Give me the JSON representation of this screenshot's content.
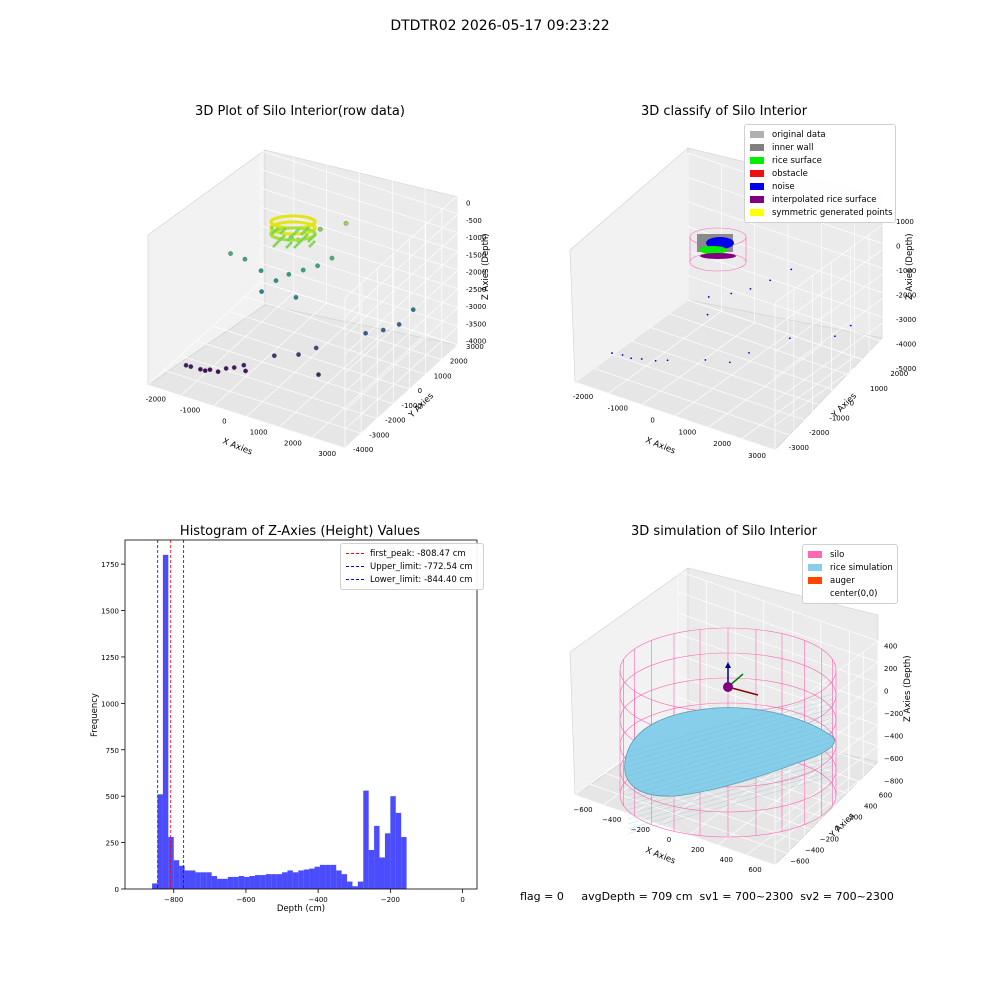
{
  "figure_title": "DTDTR02 2026-05-17 09:23:22",
  "footer_text": "flag = 0     avgDepth = 709 cm  sv1 = 700~2300  sv2 = 700~2300",
  "chart_data": [
    {
      "type": "scatter",
      "title": "3D Plot of Silo Interior(row data)",
      "xlabel": "X Axies",
      "ylabel": "Y Axies",
      "zlabel": "Z Axies (Depth)",
      "x_ticks": [
        "-2000",
        "-1000",
        "0",
        "1000",
        "2000",
        "3000"
      ],
      "y_ticks": [
        "-4000",
        "-3000",
        "-2000",
        "-1000",
        "0",
        "1000",
        "2000",
        "3000"
      ],
      "z_ticks": [
        "0",
        "-500",
        "-1000",
        "-1500",
        "-2000",
        "-2500",
        "-3000",
        "-3500",
        "-4000"
      ],
      "xlim": [
        -2500,
        3500
      ],
      "ylim": [
        -4000,
        3500
      ],
      "zlim": [
        -4300,
        200
      ],
      "colormap": "viridis (by depth)",
      "series": [
        {
          "values": [
            {
              "x": -1800,
              "y": -3000,
              "z": -3900
            },
            {
              "x": -1700,
              "y": -2900,
              "z": -3950
            },
            {
              "x": -1500,
              "y": -2700,
              "z": -4050
            },
            {
              "x": -1400,
              "y": -2600,
              "z": -4100
            },
            {
              "x": -1300,
              "y": -2500,
              "z": -4080
            },
            {
              "x": -1100,
              "y": -2400,
              "z": -4120
            },
            {
              "x": -900,
              "y": -2300,
              "z": -4000
            },
            {
              "x": -700,
              "y": -2200,
              "z": -3950
            },
            {
              "x": -500,
              "y": -2000,
              "z": -3900
            },
            {
              "x": -400,
              "y": -2100,
              "z": -4000
            },
            {
              "x": 200,
              "y": -1500,
              "z": -3600
            },
            {
              "x": 800,
              "y": -1200,
              "z": -3500
            },
            {
              "x": 1200,
              "y": -900,
              "z": -3300
            },
            {
              "x": 1500,
              "y": -1400,
              "z": -3800
            },
            {
              "x": 2600,
              "y": 500,
              "z": -2900
            },
            {
              "x": 2900,
              "y": 900,
              "z": -2800
            },
            {
              "x": 3100,
              "y": 1400,
              "z": -2500
            },
            {
              "x": 2200,
              "y": 200,
              "z": -3000
            },
            {
              "x": -1500,
              "y": -700,
              "z": -1400
            },
            {
              "x": -1200,
              "y": -400,
              "z": -1600
            },
            {
              "x": -800,
              "y": -200,
              "z": -1900
            },
            {
              "x": -600,
              "y": -600,
              "z": -2300
            },
            {
              "x": -300,
              "y": -300,
              "z": -2000
            },
            {
              "x": 0,
              "y": -100,
              "z": -1800
            },
            {
              "x": 300,
              "y": 200,
              "z": -1700
            },
            {
              "x": 600,
              "y": 500,
              "z": -1600
            },
            {
              "x": 900,
              "y": 800,
              "z": -1400
            },
            {
              "x": 400,
              "y": -500,
              "z": -2200
            },
            {
              "x": 100,
              "y": 300,
              "z": -900
            },
            {
              "x": -200,
              "y": 500,
              "z": -1000
            },
            {
              "x": 500,
              "y": 900,
              "z": -700
            },
            {
              "x": 1100,
              "y": 1300,
              "z": -500
            }
          ]
        }
      ]
    },
    {
      "type": "scatter",
      "title": "3D classify of Silo Interior",
      "xlabel": "X Axies",
      "ylabel": "Y Axies",
      "zlabel": "Z Axies (Depth)",
      "x_ticks": [
        "-2000",
        "-1000",
        "0",
        "1000",
        "2000",
        "3000"
      ],
      "y_ticks": [
        "-3000",
        "-2000",
        "-1000",
        "0",
        "1000",
        "2000"
      ],
      "z_ticks": [
        "1000",
        "0",
        "-1000",
        "-2000",
        "-3000",
        "-4000",
        "-5000"
      ],
      "xlim": [
        -2500,
        3500
      ],
      "ylim": [
        -3300,
        2500
      ],
      "zlim": [
        -5000,
        1000
      ],
      "legend": [
        {
          "name": "original data",
          "color": "#b0b0b0"
        },
        {
          "name": "inner wall",
          "color": "#808080"
        },
        {
          "name": "rice surface",
          "color": "#00ee00"
        },
        {
          "name": "obstacle",
          "color": "#ee1111"
        },
        {
          "name": "noise",
          "color": "#0000ee"
        },
        {
          "name": "interpolated rice surface",
          "color": "#800080"
        },
        {
          "name": "symmetric generated points",
          "color": "#ffff00"
        }
      ]
    },
    {
      "type": "bar",
      "title": "Histogram of Z-Axies (Height) Values",
      "xlabel": "Depth (cm)",
      "ylabel": "Frequency",
      "bin_width": 15,
      "bin_start": -860,
      "values": [
        30,
        510,
        1800,
        280,
        155,
        125,
        100,
        100,
        90,
        90,
        90,
        70,
        55,
        55,
        65,
        65,
        70,
        65,
        70,
        75,
        75,
        80,
        80,
        80,
        90,
        100,
        90,
        100,
        105,
        110,
        120,
        130,
        130,
        130,
        100,
        80,
        40,
        15,
        40,
        530,
        210,
        340,
        170,
        300,
        500,
        410,
        280
      ],
      "xlim": [
        -935,
        40
      ],
      "ylim": [
        0,
        1880
      ],
      "x_ticks": [
        -800,
        -600,
        -400,
        -200,
        0
      ],
      "y_ticks": [
        0,
        250,
        500,
        750,
        1000,
        1250,
        1500,
        1750
      ],
      "bar_color": "#0000ff",
      "reference_lines": [
        {
          "name": "first_peak: -808.47 cm",
          "x": -808.47,
          "color": "#ff0000"
        },
        {
          "name": "Upper_limit: -772.54 cm",
          "x": -772.54,
          "color": "#0000ff"
        },
        {
          "name": "Lower_limit: -844.40 cm",
          "x": -844.4,
          "color": "#0000ff"
        }
      ]
    },
    {
      "type": "area",
      "title": "3D simulation of Silo Interior",
      "xlabel": "X Axies",
      "ylabel": "Y Axies",
      "zlabel": "Z Axies (Depth)",
      "x_ticks": [
        "-600",
        "-400",
        "-200",
        "0",
        "200",
        "400",
        "600"
      ],
      "y_ticks": [
        "-600",
        "-400",
        "-200",
        "0",
        "200",
        "400",
        "600"
      ],
      "z_ticks": [
        "400",
        "200",
        "0",
        "-200",
        "-400",
        "-600",
        "-800"
      ],
      "xlim": [
        -700,
        700
      ],
      "ylim": [
        -700,
        700
      ],
      "zlim": [
        -900,
        500
      ],
      "legend": [
        {
          "name": "silo",
          "color": "#ff69b4"
        },
        {
          "name": "rice simulation",
          "color": "#87ceeb"
        },
        {
          "name": "auger",
          "color": "#ff4500"
        },
        {
          "name": "center(0,0)",
          "color": "#ffffff"
        }
      ]
    }
  ]
}
